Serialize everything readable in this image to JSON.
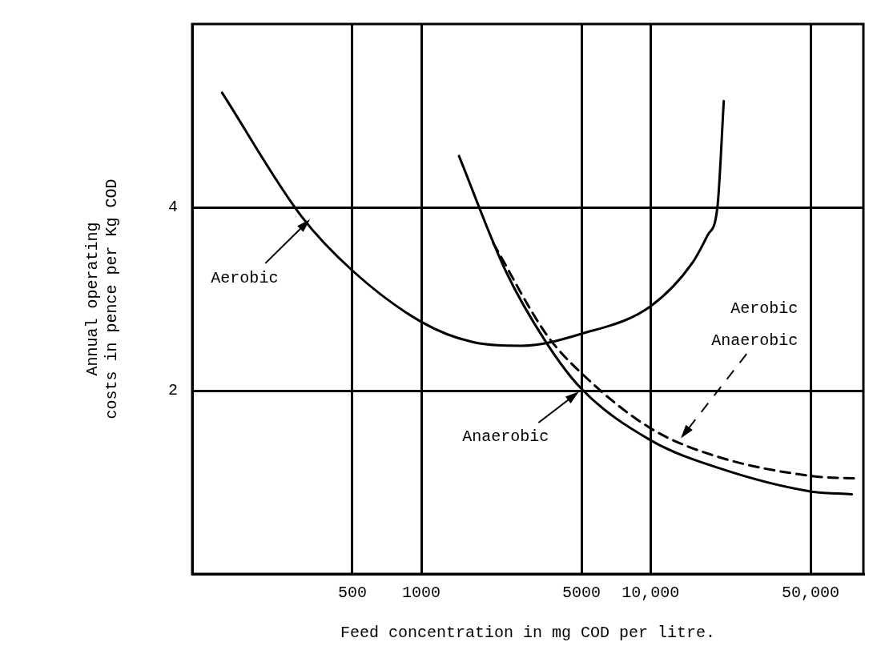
{
  "chart_data": {
    "type": "line",
    "xlabel": "Feed concentration in mg COD per litre.",
    "ylabel": "Annual operating\ncosts in pence per Kg COD",
    "log": "x",
    "grid": true,
    "legend": false,
    "marker": "none",
    "xlim": [
      100,
      85000
    ],
    "xticks": [
      {
        "value": 500,
        "label": "500"
      },
      {
        "value": 1000,
        "label": "1000"
      },
      {
        "value": 5000,
        "label": "5000"
      },
      {
        "value": 10000,
        "label": "10,000"
      },
      {
        "value": 50000,
        "label": "50,000"
      }
    ],
    "ylim": [
      0,
      6
    ],
    "yticks": [
      {
        "value": 2,
        "label": "2"
      },
      {
        "value": 4,
        "label": "4"
      }
    ],
    "series": [
      {
        "color": "#000000",
        "line_style": "solid",
        "x": [
          135,
          300,
          500,
          1000,
          1675,
          2740,
          5000,
          10000,
          15300,
          17800,
          19600,
          20900
        ],
        "values": [
          5.25,
          3.9,
          3.31,
          2.75,
          2.53,
          2.49,
          2.62,
          2.92,
          3.4,
          3.7,
          4.0,
          5.16
        ]
      },
      {
        "color": "#000000",
        "line_style": "solid",
        "x": [
          1460,
          2330,
          3500,
          5000,
          10000,
          19600,
          50000,
          75700
        ],
        "values": [
          4.56,
          3.31,
          2.53,
          2.02,
          1.46,
          1.16,
          0.9,
          0.87
        ]
      },
      {
        "color": "#000000",
        "line_style": "dashed",
        "x": [
          2060,
          3500,
          5000,
          10000,
          19600,
          50000,
          82000
        ],
        "values": [
          3.61,
          2.62,
          2.19,
          1.59,
          1.28,
          1.07,
          1.04
        ]
      }
    ],
    "annotations": [
      "Aerobic",
      "Anaerobic",
      "Aerobic\nAnaerobic"
    ]
  }
}
